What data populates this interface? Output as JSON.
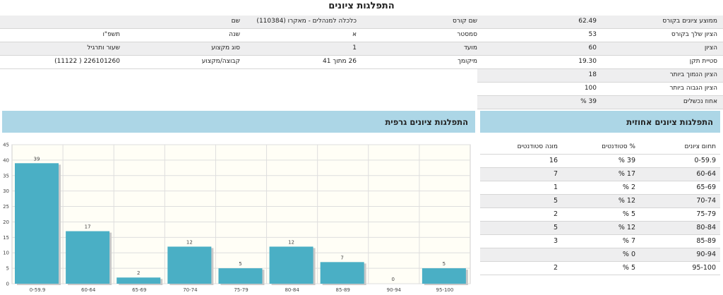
{
  "page_title": "התפלגות ציונים",
  "info": {
    "rows": [
      [
        "ממוצע ציונים בקורס",
        62.49,
        "שם קורס",
        "כלכלה למנהלים - מאקרו (110384)",
        "שם",
        null
      ],
      [
        "הציון שלך בקורס",
        53,
        "סמסטר",
        "א",
        "שנה",
        "תשפ\"ו"
      ],
      [
        "הציון",
        60,
        "מועד",
        1,
        "סוג מקצוע",
        "שעור ותרגיל"
      ],
      [
        "סטיית תקן",
        "19.30",
        "מיקומך",
        "26 מתוך 41",
        "קבוצה/מקצוע",
        "226101260 ( 11122)"
      ],
      [
        "הציון הנמוך ביותר",
        18
      ],
      [
        "הציון הגבוה ביותר",
        100
      ],
      [
        "אחוז נכשלים",
        "39 %"
      ]
    ]
  },
  "distribution_table": {
    "title": "התפלגות ציונים אחוזית",
    "columns": [
      "תחום ציונים",
      "% סטודנטים",
      "מונה סטודנטים"
    ],
    "rows": [
      [
        "0-59.9",
        "39 %",
        16
      ],
      [
        "60-64",
        "17 %",
        7
      ],
      [
        "65-69",
        "2 %",
        1
      ],
      [
        "70-74",
        "12 %",
        5
      ],
      [
        "75-79",
        "5 %",
        2
      ],
      [
        "80-84",
        "12 %",
        5
      ],
      [
        "85-89",
        "7 %",
        3
      ],
      [
        "90-94",
        "0 %",
        null
      ],
      [
        "95-100",
        "5 %",
        2
      ]
    ]
  },
  "chart_data": {
    "type": "bar",
    "title": "התפלגות ציונים גרפית",
    "categories": [
      "0-59.9",
      "60-64",
      "65-69",
      "70-74",
      "75-79",
      "80-84",
      "85-89",
      "90-94",
      "95-100"
    ],
    "values": [
      39,
      17,
      2,
      12,
      5,
      12,
      7,
      0,
      5
    ],
    "color": "#4aafc5",
    "ylim": [
      0,
      45
    ],
    "yticks": [
      0,
      5,
      10,
      15,
      20,
      25,
      30,
      35,
      40,
      45
    ],
    "grid": true
  }
}
